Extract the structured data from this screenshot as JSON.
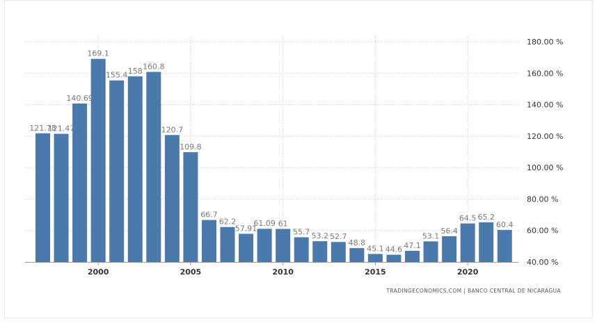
{
  "chart_data": {
    "type": "bar",
    "categories": [
      "1997",
      "1998",
      "1999",
      "2000",
      "2001",
      "2002",
      "2003",
      "2004",
      "2005",
      "2006",
      "2007",
      "2008",
      "2009",
      "2010",
      "2011",
      "2012",
      "2013",
      "2014",
      "2015",
      "2016",
      "2017",
      "2018",
      "2019",
      "2020",
      "2021",
      "2022"
    ],
    "values": [
      121.78,
      121.47,
      140.69,
      169.1,
      155.4,
      158,
      160.8,
      120.7,
      109.8,
      66.7,
      62.2,
      57.91,
      61.09,
      61,
      55.7,
      53.2,
      52.7,
      48.8,
      45.1,
      44.6,
      47.1,
      53.1,
      56.4,
      64.5,
      65.2,
      60.4
    ],
    "value_labels": [
      "121.78",
      "121.47",
      "140.69",
      "169.1",
      "155.4",
      "158",
      "160.8",
      "120.7",
      "109.8",
      "66.7",
      "62.2",
      "57.91",
      "61.09",
      "61",
      "55.7",
      "53.2",
      "52.7",
      "48.8",
      "45.1",
      "44.6",
      "47.1",
      "53.1",
      "56.4",
      "64.5",
      "65.2",
      "60.4"
    ],
    "xticks": [
      "2000",
      "2005",
      "2010",
      "2015",
      "2020"
    ],
    "yticks": [
      "40.00 %",
      "60.00 %",
      "80.00 %",
      "100.00 %",
      "120.00 %",
      "140.00 %",
      "160.00 %",
      "180.00 %"
    ],
    "ylim": [
      40,
      180
    ],
    "grid": true,
    "bar_color": "#4a7aab",
    "title": "",
    "xlabel": "",
    "ylabel": ""
  },
  "source_text": "TRADINGECONOMICS.COM | BANCO CENTRAL DE NICARAGUA"
}
